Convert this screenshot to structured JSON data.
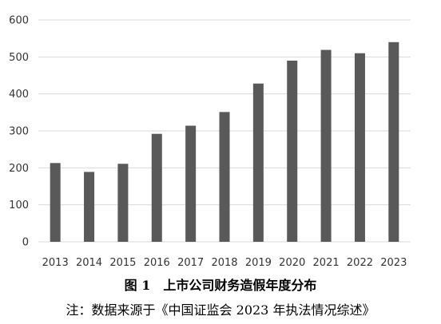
{
  "chart_data": {
    "type": "bar",
    "title": "图 1　上市公司财务造假年度分布",
    "note": "注：数据来源于《中国证监会 2023 年执法情况综述》",
    "categories": [
      "2013",
      "2014",
      "2015",
      "2016",
      "2017",
      "2018",
      "2019",
      "2020",
      "2021",
      "2022",
      "2023"
    ],
    "values": [
      213,
      189,
      211,
      292,
      314,
      351,
      428,
      490,
      519,
      510,
      540
    ],
    "ylim": [
      0,
      600
    ],
    "yticks": [
      0,
      100,
      200,
      300,
      400,
      500,
      600
    ],
    "grid": true,
    "legend": "none",
    "bar_color": "#595959",
    "grid_color": "#d9d9d9"
  }
}
